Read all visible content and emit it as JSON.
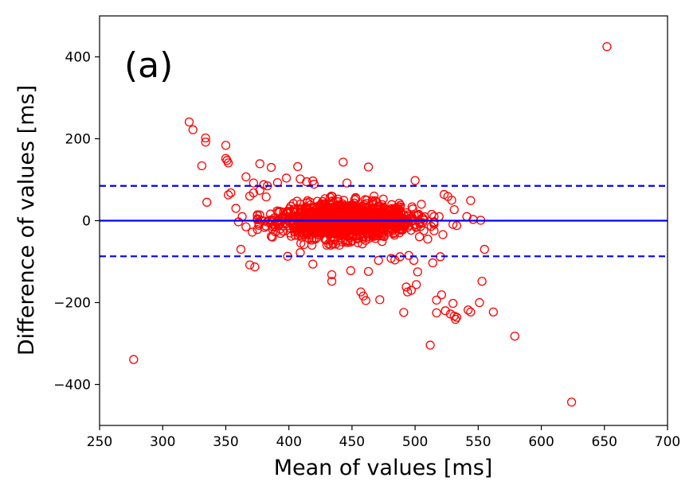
{
  "chart_data": {
    "type": "scatter",
    "title": "",
    "panel_label": "(a)",
    "xlabel": "Mean of values [ms]",
    "ylabel": "Difference of values [ms]",
    "xlim": [
      250,
      700
    ],
    "ylim": [
      -500,
      500
    ],
    "xticks": [
      250,
      300,
      350,
      400,
      450,
      500,
      550,
      600,
      650,
      700
    ],
    "yticks": [
      -400,
      -200,
      0,
      200,
      400
    ],
    "ytick_labels": [
      "−400",
      "−200",
      "0",
      "200",
      "400"
    ],
    "grid": false,
    "marker": "open-circle",
    "marker_color": "#ff0000",
    "reference_lines": [
      {
        "name": "mean-difference",
        "y": 0,
        "style": "solid",
        "color": "#0000ff"
      },
      {
        "name": "upper-limit-of-agreement",
        "y": 85,
        "style": "dashed",
        "color": "#0000ff"
      },
      {
        "name": "lower-limit-of-agreement",
        "y": -87,
        "style": "dashed",
        "color": "#0000ff"
      }
    ],
    "cluster": {
      "description": "dense cloud of points",
      "x_range": [
        375,
        515
      ],
      "y_range": [
        -60,
        60
      ],
      "center_x": 445,
      "n_points": 1400
    },
    "outliers": [
      [
        652,
        425
      ],
      [
        321,
        241
      ],
      [
        324,
        222
      ],
      [
        334,
        202
      ],
      [
        334,
        192
      ],
      [
        350,
        184
      ],
      [
        350,
        152
      ],
      [
        351,
        147
      ],
      [
        352,
        141
      ],
      [
        331,
        134
      ],
      [
        443,
        143
      ],
      [
        407,
        132
      ],
      [
        463,
        131
      ],
      [
        386,
        130
      ],
      [
        377,
        139
      ],
      [
        366,
        107
      ],
      [
        409,
        102
      ],
      [
        372,
        92
      ],
      [
        380,
        88
      ],
      [
        383,
        85
      ],
      [
        391,
        93
      ],
      [
        398,
        104
      ],
      [
        414,
        95
      ],
      [
        419,
        97
      ],
      [
        420,
        89
      ],
      [
        446,
        92
      ],
      [
        500,
        98
      ],
      [
        369,
        60
      ],
      [
        372,
        68
      ],
      [
        377,
        74
      ],
      [
        382,
        58
      ],
      [
        354,
        68
      ],
      [
        352,
        63
      ],
      [
        335,
        45
      ],
      [
        358,
        30
      ],
      [
        363,
        10
      ],
      [
        360,
        -3
      ],
      [
        366,
        -15
      ],
      [
        371,
        -28
      ],
      [
        362,
        -70
      ],
      [
        369,
        -108
      ],
      [
        373,
        -113
      ],
      [
        387,
        -40
      ],
      [
        399,
        -87
      ],
      [
        409,
        -78
      ],
      [
        419,
        -106
      ],
      [
        434,
        -132
      ],
      [
        434,
        -148
      ],
      [
        449,
        -122
      ],
      [
        457,
        -174
      ],
      [
        459,
        -184
      ],
      [
        461,
        -195
      ],
      [
        463,
        -124
      ],
      [
        471,
        -97
      ],
      [
        472,
        -193
      ],
      [
        481,
        -92
      ],
      [
        484,
        -96
      ],
      [
        491,
        -224
      ],
      [
        493,
        -162
      ],
      [
        494,
        -174
      ],
      [
        497,
        -170
      ],
      [
        499,
        -97
      ],
      [
        501,
        -156
      ],
      [
        502,
        -125
      ],
      [
        512,
        -304
      ],
      [
        514,
        -103
      ],
      [
        517,
        -225
      ],
      [
        517,
        -194
      ],
      [
        520,
        -88
      ],
      [
        521,
        -181
      ],
      [
        524,
        -220
      ],
      [
        528,
        -228
      ],
      [
        530,
        -202
      ],
      [
        531,
        -233
      ],
      [
        532,
        -241
      ],
      [
        533,
        -236
      ],
      [
        541,
        10
      ],
      [
        544,
        49
      ],
      [
        546,
        3
      ],
      [
        552,
        1
      ],
      [
        553,
        -148
      ],
      [
        555,
        -70
      ],
      [
        551,
        -200
      ],
      [
        542,
        -218
      ],
      [
        544,
        -223
      ],
      [
        562,
        -223
      ],
      [
        579,
        -282
      ],
      [
        624,
        -443
      ],
      [
        277,
        -339
      ],
      [
        523,
        64
      ],
      [
        526,
        59
      ],
      [
        529,
        50
      ],
      [
        531,
        27
      ],
      [
        533,
        -12
      ],
      [
        530,
        -9
      ],
      [
        522,
        -34
      ],
      [
        519,
        10
      ],
      [
        510,
        -45
      ],
      [
        505,
        40
      ],
      [
        495,
        -85
      ],
      [
        488,
        -88
      ]
    ]
  }
}
